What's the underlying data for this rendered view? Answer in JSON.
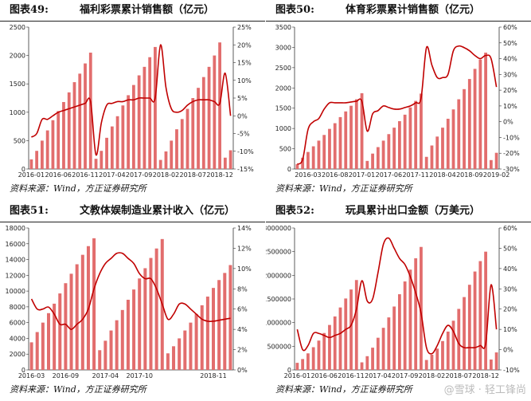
{
  "colors": {
    "bar": "#e26d6d",
    "line": "#c00000",
    "axis": "#333333"
  },
  "watermark": "@雪球 · 轻工锋尚",
  "chart_data": [
    {
      "type": "bar",
      "label": "图表49:",
      "title": "福利彩票累计销售额（亿元）",
      "source": "资料来源：Wind，方正证券研究所",
      "ylim": [
        0,
        2500
      ],
      "yticks": [
        0,
        500,
        1000,
        1500,
        2000,
        2500
      ],
      "y2lim": [
        -15,
        25
      ],
      "y2ticks": [
        -15,
        -10,
        -5,
        0,
        5,
        10,
        15,
        20,
        25
      ],
      "y2suffix": "%",
      "xticks": [
        {
          "i": 0,
          "label": "2016-01"
        },
        {
          "i": 5,
          "label": "2016-06"
        },
        {
          "i": 10,
          "label": "2016-11"
        },
        {
          "i": 15,
          "label": "2017-04"
        },
        {
          "i": 20,
          "label": "2017-09"
        },
        {
          "i": 25,
          "label": "2018-02"
        },
        {
          "i": 30,
          "label": "2018-07"
        },
        {
          "i": 35,
          "label": "2018-12"
        }
      ],
      "values": [
        170,
        320,
        500,
        680,
        860,
        1020,
        1180,
        1350,
        1530,
        1680,
        1860,
        2050,
        180,
        320,
        550,
        750,
        930,
        1120,
        1300,
        1480,
        1650,
        1800,
        1970,
        2150,
        160,
        310,
        500,
        700,
        880,
        1060,
        1250,
        1430,
        1620,
        1800,
        2000,
        2230,
        200,
        330
      ],
      "line": [
        -6,
        -5,
        -1,
        -1,
        0,
        1,
        1.5,
        2,
        2.5,
        3,
        3.5,
        4,
        -11,
        -2,
        3,
        3.5,
        4,
        4,
        4.5,
        4.5,
        5,
        5,
        5,
        5,
        20,
        8,
        2,
        1,
        1.5,
        3,
        4,
        4.5,
        4.5,
        4.5,
        4,
        3.5,
        12,
        0
      ]
    },
    {
      "type": "bar",
      "label": "图表50:",
      "title": "体育彩票累计销售额（亿元）",
      "source": "资料来源：Wind，方正证券研究所",
      "ylim": [
        0,
        3500
      ],
      "yticks": [
        0,
        500,
        1000,
        1500,
        2000,
        2500,
        3000,
        3500
      ],
      "y2lim": [
        -30,
        60
      ],
      "y2ticks": [
        -30,
        -20,
        -10,
        0,
        10,
        20,
        30,
        40,
        50,
        60
      ],
      "y2suffix": "%",
      "xticks": [
        {
          "i": 2,
          "label": "2016-03"
        },
        {
          "i": 7,
          "label": "2016-08"
        },
        {
          "i": 12,
          "label": "2017-01"
        },
        {
          "i": 17,
          "label": "2017-06"
        },
        {
          "i": 22,
          "label": "2017-11"
        },
        {
          "i": 27,
          "label": "2018-04"
        },
        {
          "i": 32,
          "label": "2018-09"
        },
        {
          "i": 37,
          "label": "2019-02"
        }
      ],
      "values": [
        120,
        280,
        420,
        560,
        700,
        840,
        990,
        1130,
        1280,
        1420,
        1560,
        1720,
        1870,
        200,
        380,
        540,
        700,
        860,
        1020,
        1180,
        1340,
        1520,
        1680,
        1860,
        300,
        580,
        800,
        1020,
        1240,
        1470,
        1720,
        1970,
        2220,
        2470,
        2700,
        2870,
        220,
        400
      ],
      "line": [
        -27,
        -24,
        -5,
        0,
        2,
        8,
        12,
        12,
        12,
        12,
        12.5,
        13,
        13,
        -6,
        5,
        7,
        10,
        9,
        8,
        8,
        9,
        10,
        12,
        15,
        47,
        36,
        28,
        28,
        30,
        45,
        48,
        47,
        45,
        42,
        40,
        42,
        40,
        22
      ]
    },
    {
      "type": "bar",
      "label": "图表51:",
      "title": "文教体娱制造业累计收入（亿元）",
      "source": "资料来源：Wind，方正证券研究所",
      "ylim": [
        0,
        18000
      ],
      "yticks": [
        0,
        2000,
        4000,
        6000,
        8000,
        10000,
        12000,
        14000,
        16000,
        18000
      ],
      "y2lim": [
        0,
        14
      ],
      "y2ticks": [
        0,
        2,
        4,
        6,
        8,
        10,
        12,
        14
      ],
      "y2suffix": "%",
      "xticks": [
        {
          "i": 0,
          "label": "2016-03"
        },
        {
          "i": 6,
          "label": "2016-09"
        },
        {
          "i": 13,
          "label": "2017-04"
        },
        {
          "i": 19,
          "label": "2017-10"
        },
        {
          "i": 32,
          "label": "2018-11"
        }
      ],
      "values": [
        3500,
        4800,
        6000,
        7200,
        8400,
        9700,
        11000,
        12200,
        13400,
        14600,
        15700,
        16700,
        2500,
        3700,
        5000,
        6300,
        7600,
        8900,
        10200,
        11600,
        12900,
        14200,
        15400,
        16600,
        2100,
        3000,
        4000,
        5000,
        6000,
        7100,
        8200,
        9300,
        10400,
        11400,
        12300,
        13300
      ],
      "line": [
        7,
        6,
        6,
        6.2,
        5.5,
        4.5,
        4.5,
        4,
        4.5,
        5,
        6,
        8,
        9.5,
        10.5,
        11,
        11.5,
        11.5,
        11,
        10.5,
        9.5,
        9,
        9,
        8,
        6.5,
        5,
        5.5,
        6.5,
        6.5,
        6,
        5.5,
        5,
        4.8,
        4.8,
        4.9,
        5,
        5.1
      ]
    },
    {
      "type": "bar",
      "label": "图表52:",
      "title": "玩具累计出口金额（万美元）",
      "source": "资料来源：Wind，方正证券研究所",
      "ylim": [
        0,
        3000000
      ],
      "yticks": [
        0,
        500000,
        1000000,
        1500000,
        2000000,
        2500000,
        3000000
      ],
      "y2lim": [
        -10,
        60
      ],
      "y2ticks": [
        -10,
        0,
        10,
        20,
        30,
        40,
        50,
        60
      ],
      "y2suffix": "%",
      "xticks": [
        {
          "i": 0,
          "label": "2016-01"
        },
        {
          "i": 5,
          "label": "2016-06"
        },
        {
          "i": 10,
          "label": "2016-11"
        },
        {
          "i": 15,
          "label": "2017-04"
        },
        {
          "i": 20,
          "label": "2017-09"
        },
        {
          "i": 25,
          "label": "2018-02"
        },
        {
          "i": 30,
          "label": "2018-07"
        },
        {
          "i": 35,
          "label": "2018-12"
        }
      ],
      "values": [
        150000,
        230000,
        350000,
        480000,
        620000,
        780000,
        950000,
        1130000,
        1320000,
        1510000,
        1700000,
        1900000,
        160000,
        290000,
        470000,
        680000,
        890000,
        1110000,
        1340000,
        1600000,
        1870000,
        2120000,
        2360000,
        2600000,
        210000,
        320000,
        450000,
        610000,
        810000,
        1040000,
        1290000,
        1540000,
        1800000,
        2080000,
        2300000,
        2500000,
        220000,
        370000
      ],
      "line": [
        10,
        0,
        2,
        8,
        8,
        7,
        6,
        7,
        8,
        10,
        12,
        20,
        34,
        24,
        25,
        38,
        52,
        55,
        50,
        45,
        42,
        36,
        28,
        18,
        1,
        -2,
        2,
        8,
        12,
        9,
        3,
        1,
        1,
        1,
        2,
        3,
        32,
        10
      ]
    }
  ]
}
